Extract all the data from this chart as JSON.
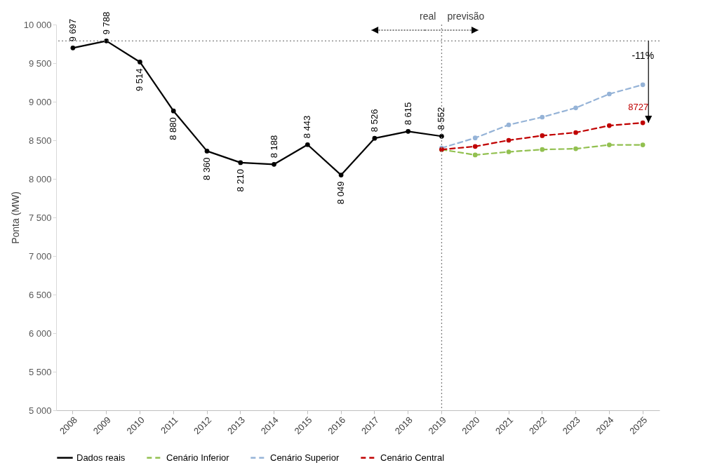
{
  "chart_data": {
    "type": "line",
    "categories": [
      "2008",
      "2009",
      "2010",
      "2011",
      "2012",
      "2013",
      "2014",
      "2015",
      "2016",
      "2017",
      "2018",
      "2019",
      "2020",
      "2021",
      "2022",
      "2023",
      "2024",
      "2025"
    ],
    "ylabel": "Ponta (MW)",
    "ylim": [
      5000,
      10000
    ],
    "yticks": [
      {
        "value": 5000,
        "label": "5 000"
      },
      {
        "value": 5500,
        "label": "5 500"
      },
      {
        "value": 6000,
        "label": "6 000"
      },
      {
        "value": 6500,
        "label": "6 500"
      },
      {
        "value": 7000,
        "label": "7 000"
      },
      {
        "value": 7500,
        "label": "7 500"
      },
      {
        "value": 8000,
        "label": "8 000"
      },
      {
        "value": 8500,
        "label": "8 500"
      },
      {
        "value": 9000,
        "label": "9 000"
      },
      {
        "value": 9500,
        "label": "9 500"
      },
      {
        "value": 10000,
        "label": "10 000"
      }
    ],
    "series": [
      {
        "name": "Dados reais",
        "color": "#000000",
        "line_style": "solid",
        "values": [
          9697,
          9788,
          9514,
          8880,
          8360,
          8210,
          8188,
          8443,
          8049,
          8526,
          8615,
          8552,
          null,
          null,
          null,
          null,
          null,
          null
        ],
        "value_labels": [
          "9 697",
          "9 788",
          "9 514",
          "8 880",
          "8 360",
          "8 210",
          "8 188",
          "8 443",
          "8 049",
          "8 526",
          "8 615",
          "8 552",
          null,
          null,
          null,
          null,
          null,
          null
        ]
      },
      {
        "name": "Cenário Inferior",
        "color": "#92c050",
        "line_style": "dashed",
        "values": [
          null,
          null,
          null,
          null,
          null,
          null,
          null,
          null,
          null,
          null,
          null,
          8380,
          8310,
          8350,
          8380,
          8390,
          8440,
          8440
        ]
      },
      {
        "name": "Cenário Superior",
        "color": "#95b3d7",
        "line_style": "dashed",
        "values": [
          null,
          null,
          null,
          null,
          null,
          null,
          null,
          null,
          null,
          null,
          null,
          8400,
          8530,
          8700,
          8800,
          8920,
          9100,
          9220
        ]
      },
      {
        "name": "Cenário Central",
        "color": "#c00000",
        "line_style": "dashed",
        "values": [
          null,
          null,
          null,
          null,
          null,
          null,
          null,
          null,
          null,
          null,
          null,
          8380,
          8420,
          8500,
          8560,
          8600,
          8690,
          8727
        ],
        "value_labels": [
          null,
          null,
          null,
          null,
          null,
          null,
          null,
          null,
          null,
          null,
          null,
          null,
          null,
          null,
          null,
          null,
          null,
          "8727"
        ]
      }
    ],
    "ref_lines": [
      {
        "axis": "y",
        "value": 9788,
        "color": "#808080",
        "line_style": "dotted"
      },
      {
        "axis": "x",
        "value": "2019",
        "color": "#808080",
        "line_style": "dotted"
      }
    ],
    "annotations": [
      "real",
      "previsão",
      "-11%"
    ],
    "marker": "circle",
    "legend": "bottom",
    "grid": false
  }
}
